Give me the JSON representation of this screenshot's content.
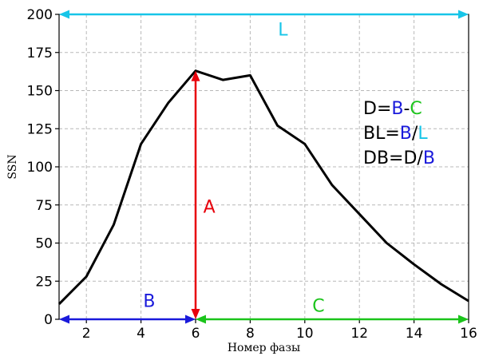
{
  "chart_data": {
    "type": "line",
    "title": "",
    "xlabel": "Номер фазы",
    "ylabel": "SSN",
    "xlim": [
      1,
      16
    ],
    "ylim": [
      0,
      200
    ],
    "xticks": [
      2,
      4,
      6,
      8,
      10,
      12,
      14,
      16
    ],
    "yticks": [
      0,
      25,
      50,
      75,
      100,
      125,
      150,
      175,
      200
    ],
    "grid": true,
    "series": [
      {
        "color": "#000000",
        "x": [
          1,
          2,
          3,
          4,
          5,
          6,
          7,
          8,
          9,
          10,
          11,
          12,
          13,
          14,
          15,
          16
        ],
        "y": [
          10,
          28,
          62,
          115,
          142,
          163,
          157,
          160,
          127,
          115,
          88,
          69,
          50,
          36,
          23,
          12
        ]
      }
    ],
    "annotations": [
      {
        "label": "A",
        "color": "#e8000b",
        "type": "vertical-double-arrow",
        "x": 6,
        "y_from": 0,
        "y_to": 163,
        "label_x": 6.5,
        "label_y": 70
      },
      {
        "label": "B",
        "color": "#1a1adb",
        "type": "horizontal-double-arrow",
        "y": 0,
        "x_from": 1,
        "x_to": 6,
        "label_x": 4.3,
        "label_y": 8
      },
      {
        "label": "C",
        "color": "#1bc41b",
        "type": "horizontal-double-arrow",
        "y": 0,
        "x_from": 6,
        "x_to": 16,
        "label_x": 10.5,
        "label_y": 5
      },
      {
        "label": "L",
        "color": "#17c5e8",
        "type": "horizontal-double-arrow",
        "y": 200,
        "x_from": 1,
        "x_to": 16,
        "label_x": 9.2,
        "label_y": 186
      }
    ],
    "formulas": [
      {
        "parts": [
          {
            "text": "D=",
            "color": "#000000"
          },
          {
            "text": "B",
            "color": "#1a1adb"
          },
          {
            "text": "-",
            "color": "#000000"
          },
          {
            "text": "C",
            "color": "#1bc41b"
          }
        ]
      },
      {
        "parts": [
          {
            "text": "BL=",
            "color": "#000000"
          },
          {
            "text": "B",
            "color": "#1a1adb"
          },
          {
            "text": "/",
            "color": "#000000"
          },
          {
            "text": "L",
            "color": "#17c5e8"
          }
        ]
      },
      {
        "parts": [
          {
            "text": "DB=D/",
            "color": "#000000"
          },
          {
            "text": "B",
            "color": "#1a1adb"
          }
        ]
      }
    ]
  }
}
